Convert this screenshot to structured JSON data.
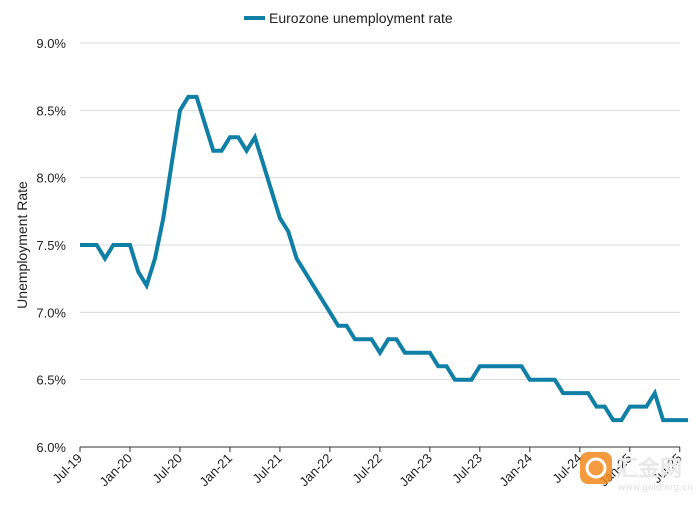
{
  "chart_data": {
    "type": "line",
    "title": "",
    "xlabel": "",
    "ylabel": "Unemployment Rate",
    "legend": {
      "position": "top",
      "entries": [
        "Eurozone unemployment rate"
      ]
    },
    "ylim": [
      6.0,
      9.0
    ],
    "yticks": [
      6.0,
      6.5,
      7.0,
      7.5,
      8.0,
      8.5,
      9.0
    ],
    "ytick_labels": [
      "6.0%",
      "6.5%",
      "7.0%",
      "7.5%",
      "8.0%",
      "8.5%",
      "9.0%"
    ],
    "xticks": [
      "2019-07",
      "2020-01",
      "2020-07",
      "2021-01",
      "2021-07",
      "2022-01",
      "2022-07",
      "2023-01",
      "2023-07",
      "2024-01",
      "2024-07",
      "2025-01",
      "2025-07"
    ],
    "xtick_labels": [
      "Jul-19",
      "Jan-20",
      "Jul-20",
      "Jan-21",
      "Jul-21",
      "Jan-22",
      "Jul-22",
      "Jan-23",
      "Jul-23",
      "Jan-24",
      "Jul-24",
      "Jan-25",
      "Jul-25"
    ],
    "grid": true,
    "series": [
      {
        "name": "Eurozone unemployment rate",
        "color": "#0f7fa6",
        "x": [
          "2019-07",
          "2019-08",
          "2019-09",
          "2019-10",
          "2019-11",
          "2019-12",
          "2020-01",
          "2020-02",
          "2020-03",
          "2020-04",
          "2020-05",
          "2020-06",
          "2020-07",
          "2020-08",
          "2020-09",
          "2020-10",
          "2020-11",
          "2020-12",
          "2021-01",
          "2021-02",
          "2021-03",
          "2021-04",
          "2021-05",
          "2021-06",
          "2021-07",
          "2021-08",
          "2021-09",
          "2021-10",
          "2021-11",
          "2021-12",
          "2022-01",
          "2022-02",
          "2022-03",
          "2022-04",
          "2022-05",
          "2022-06",
          "2022-07",
          "2022-08",
          "2022-09",
          "2022-10",
          "2022-11",
          "2022-12",
          "2023-01",
          "2023-02",
          "2023-03",
          "2023-04",
          "2023-05",
          "2023-06",
          "2023-07",
          "2023-08",
          "2023-09",
          "2023-10",
          "2023-11",
          "2023-12",
          "2024-01",
          "2024-02",
          "2024-03",
          "2024-04",
          "2024-05",
          "2024-06",
          "2024-07",
          "2024-08",
          "2024-09",
          "2024-10",
          "2024-11",
          "2024-12",
          "2025-01",
          "2025-02",
          "2025-03",
          "2025-04",
          "2025-05",
          "2025-06",
          "2025-07",
          "2025-08"
        ],
        "values": [
          7.5,
          7.5,
          7.5,
          7.4,
          7.5,
          7.5,
          7.5,
          7.3,
          7.2,
          7.4,
          7.7,
          8.1,
          8.5,
          8.6,
          8.6,
          8.4,
          8.2,
          8.2,
          8.3,
          8.3,
          8.2,
          8.3,
          8.1,
          7.9,
          7.7,
          7.6,
          7.4,
          7.3,
          7.2,
          7.1,
          7.0,
          6.9,
          6.9,
          6.8,
          6.8,
          6.8,
          6.7,
          6.8,
          6.8,
          6.7,
          6.7,
          6.7,
          6.7,
          6.6,
          6.6,
          6.5,
          6.5,
          6.5,
          6.6,
          6.6,
          6.6,
          6.6,
          6.6,
          6.6,
          6.5,
          6.5,
          6.5,
          6.5,
          6.4,
          6.4,
          6.4,
          6.4,
          6.3,
          6.3,
          6.2,
          6.2,
          6.3,
          6.3,
          6.3,
          6.4,
          6.2,
          6.2,
          6.2,
          6.2
        ]
      }
    ]
  },
  "watermark": {
    "text": "汇金网",
    "subtext": "www.gold.org.cn",
    "color": "#f28a1e"
  }
}
